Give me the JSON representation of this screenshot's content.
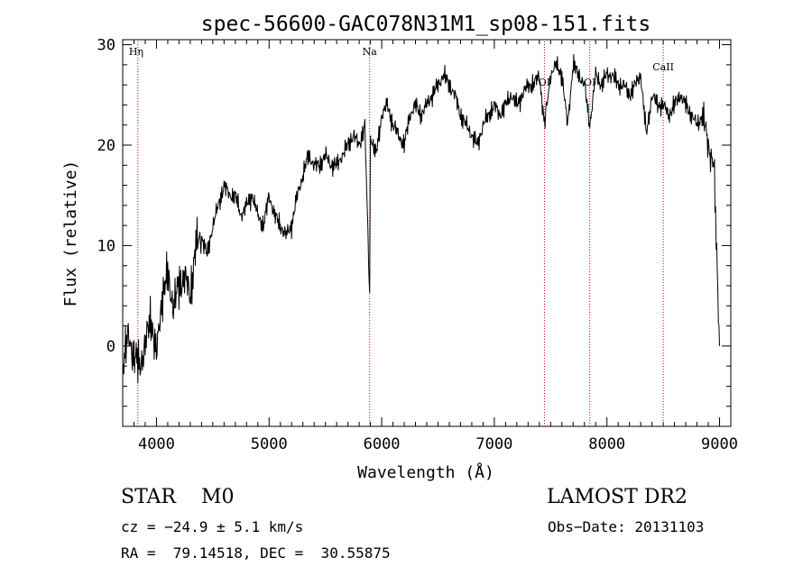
{
  "chart_data": {
    "type": "line",
    "title": "spec-56600-GAC078N31M1_sp08-151.fits",
    "xlabel": "Wavelength (Å)",
    "ylabel": "Flux (relative)",
    "xlim": [
      3700,
      9100
    ],
    "ylim": [
      -8,
      30.5
    ],
    "x_ticks": [
      4000,
      5000,
      6000,
      7000,
      8000,
      9000
    ],
    "y_ticks": [
      0,
      10,
      20,
      30
    ],
    "grid": false,
    "line_color": "#000000",
    "marker_color": "#cc0000",
    "lines": [
      {
        "label": "Hη",
        "x": 3835
      },
      {
        "label": "Na",
        "x": 5893
      },
      {
        "label": "OI",
        "x": 7445
      },
      {
        "label": "OI",
        "x": 7848
      },
      {
        "label": "CaII",
        "x": 8500
      }
    ],
    "series": [
      {
        "x": [
          3700,
          3750,
          3800,
          3850,
          3900,
          3950,
          4000,
          4050,
          4100,
          4150,
          4200,
          4250,
          4300,
          4350,
          4400,
          4450,
          4500,
          4550,
          4600,
          4650,
          4700,
          4750,
          4800,
          4850,
          4900,
          4950,
          5000,
          5050,
          5100,
          5150,
          5200,
          5250,
          5300,
          5350,
          5400,
          5450,
          5500,
          5550,
          5600,
          5650,
          5700,
          5750,
          5800,
          5850,
          5893,
          5900,
          5950,
          6000,
          6050,
          6100,
          6150,
          6200,
          6250,
          6300,
          6350,
          6400,
          6450,
          6500,
          6550,
          6600,
          6650,
          6700,
          6750,
          6800,
          6850,
          6900,
          6950,
          7000,
          7050,
          7100,
          7150,
          7200,
          7250,
          7300,
          7350,
          7400,
          7445,
          7500,
          7550,
          7600,
          7650,
          7700,
          7750,
          7800,
          7848,
          7900,
          7950,
          8000,
          8050,
          8100,
          8150,
          8200,
          8250,
          8300,
          8350,
          8400,
          8450,
          8500,
          8550,
          8600,
          8650,
          8700,
          8750,
          8800,
          8850,
          8900,
          8950,
          9000
        ],
        "y": [
          -2,
          1,
          -1,
          -2,
          0,
          3,
          -1,
          5,
          7,
          4,
          6,
          7,
          5,
          10,
          11,
          9,
          12,
          14,
          16,
          15,
          15,
          13,
          14,
          15,
          13,
          12,
          15,
          13,
          12,
          11,
          12,
          15,
          17,
          19,
          18,
          18,
          19,
          18,
          18,
          19,
          20,
          21,
          20,
          22,
          5,
          21,
          19,
          23,
          24,
          22,
          21,
          20,
          23,
          24,
          23,
          24,
          25,
          26,
          27,
          26,
          25,
          23,
          22,
          21,
          20,
          22,
          23,
          24,
          23,
          24,
          25,
          24,
          25,
          26,
          26,
          27,
          22,
          27,
          28,
          27,
          22,
          28,
          27,
          26,
          22,
          27,
          26,
          27,
          27,
          26,
          26,
          25,
          26,
          27,
          21,
          25,
          24,
          24,
          23,
          24,
          25,
          24,
          23,
          22,
          23,
          20,
          18,
          0
        ]
      }
    ]
  },
  "info": {
    "classification": "STAR    M0",
    "survey": "LAMOST DR2",
    "cz": "cz = −24.9 ± 5.1 km/s",
    "obs_date": "Obs−Date: 20131103",
    "coords": "RA =  79.14518, DEC =  30.55875"
  }
}
